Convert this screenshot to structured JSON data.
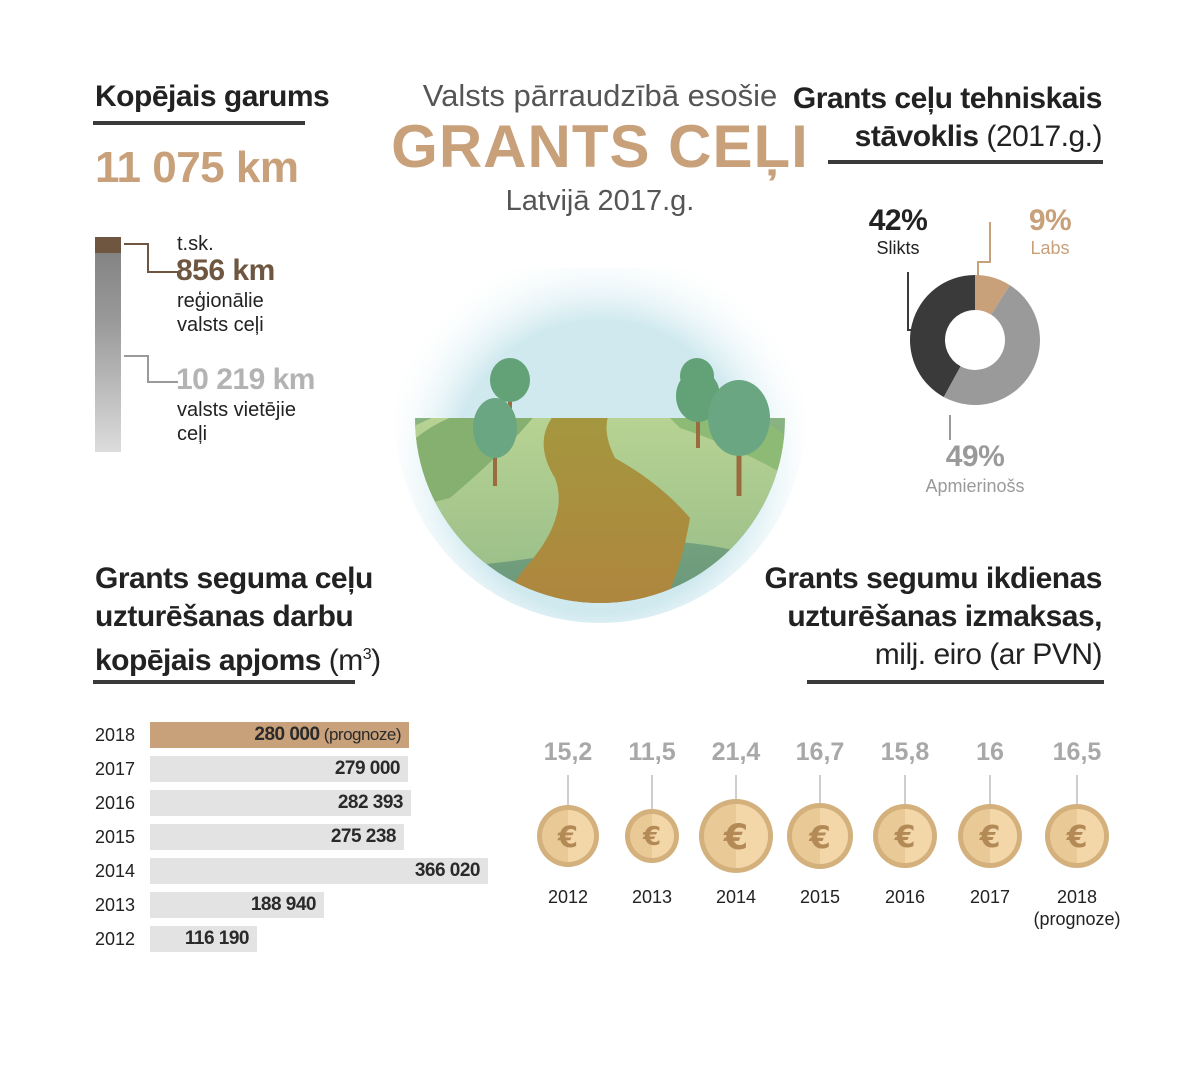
{
  "title": {
    "line1": "Valsts pārraudzībā esošie",
    "line2": "GRANTS CEĻI",
    "line3": "Latvijā 2017.g."
  },
  "length": {
    "heading": "Kopējais garums",
    "total": "11 075 km",
    "incl": "t.sk.",
    "regional_value": "856 km",
    "regional_label_1": "reģionālie",
    "regional_label_2": "valsts ceļi",
    "local_value": "10 219 km",
    "local_label_1": "valsts vietējie",
    "local_label_2": "ceļi"
  },
  "condition": {
    "heading_bold_1": "Grants ceļu tehniskais",
    "heading_bold_2": "stāvoklis",
    "heading_light": "(2017.g.)",
    "slices": [
      {
        "pct": "9%",
        "label": "Labs",
        "value": 9,
        "color": "#c8a07a"
      },
      {
        "pct": "49%",
        "label": "Apmierinošs",
        "value": 49,
        "color": "#9a9a9b"
      },
      {
        "pct": "42%",
        "label": "Slikts",
        "value": 42,
        "color": "#3a3a3a"
      }
    ]
  },
  "volume": {
    "heading_1": "Grants seguma ceļu",
    "heading_2": "uzturēšanas darbu",
    "heading_3": "kopējais apjoms",
    "unit": "(m",
    "unit_sup": "3",
    "unit_end": ")",
    "rows": [
      {
        "year": "2018",
        "label": "280 000",
        "note": "(prognoze)"
      },
      {
        "year": "2017",
        "label": "279 000",
        "note": ""
      },
      {
        "year": "2016",
        "label": "282 393",
        "note": ""
      },
      {
        "year": "2015",
        "label": "275 238",
        "note": ""
      },
      {
        "year": "2014",
        "label": "366 020",
        "note": ""
      },
      {
        "year": "2013",
        "label": "188 940",
        "note": ""
      },
      {
        "year": "2012",
        "label": "116 190",
        "note": ""
      }
    ]
  },
  "cost": {
    "heading_1": "Grants segumu ikdienas",
    "heading_2": "uzturēšanas izmaksas,",
    "heading_3": "milj. eiro (ar PVN)",
    "coins": [
      {
        "label": "15,2",
        "year": "2012",
        "note": ""
      },
      {
        "label": "11,5",
        "year": "2013",
        "note": ""
      },
      {
        "label": "21,4",
        "year": "2014",
        "note": ""
      },
      {
        "label": "16,7",
        "year": "2015",
        "note": ""
      },
      {
        "label": "15,8",
        "year": "2016",
        "note": ""
      },
      {
        "label": "16",
        "year": "2017",
        "note": ""
      },
      {
        "label": "16,5",
        "year": "2018",
        "note": "(prognoze)"
      }
    ]
  },
  "chart_data": [
    {
      "type": "bar",
      "categories": [
        "2018",
        "2017",
        "2016",
        "2015",
        "2014",
        "2013",
        "2012"
      ],
      "values": [
        280000,
        279000,
        282393,
        275238,
        366020,
        188940,
        116190
      ]
    },
    {
      "type": "pie",
      "categories": [
        "Labs",
        "Apmierinošs",
        "Slikts"
      ],
      "values": [
        9,
        49,
        42
      ]
    },
    {
      "type": "bar",
      "categories": [
        "2012",
        "2013",
        "2014",
        "2015",
        "2016",
        "2017",
        "2018"
      ],
      "values": [
        15.2,
        11.5,
        21.4,
        16.7,
        15.8,
        16,
        16.5
      ]
    }
  ]
}
